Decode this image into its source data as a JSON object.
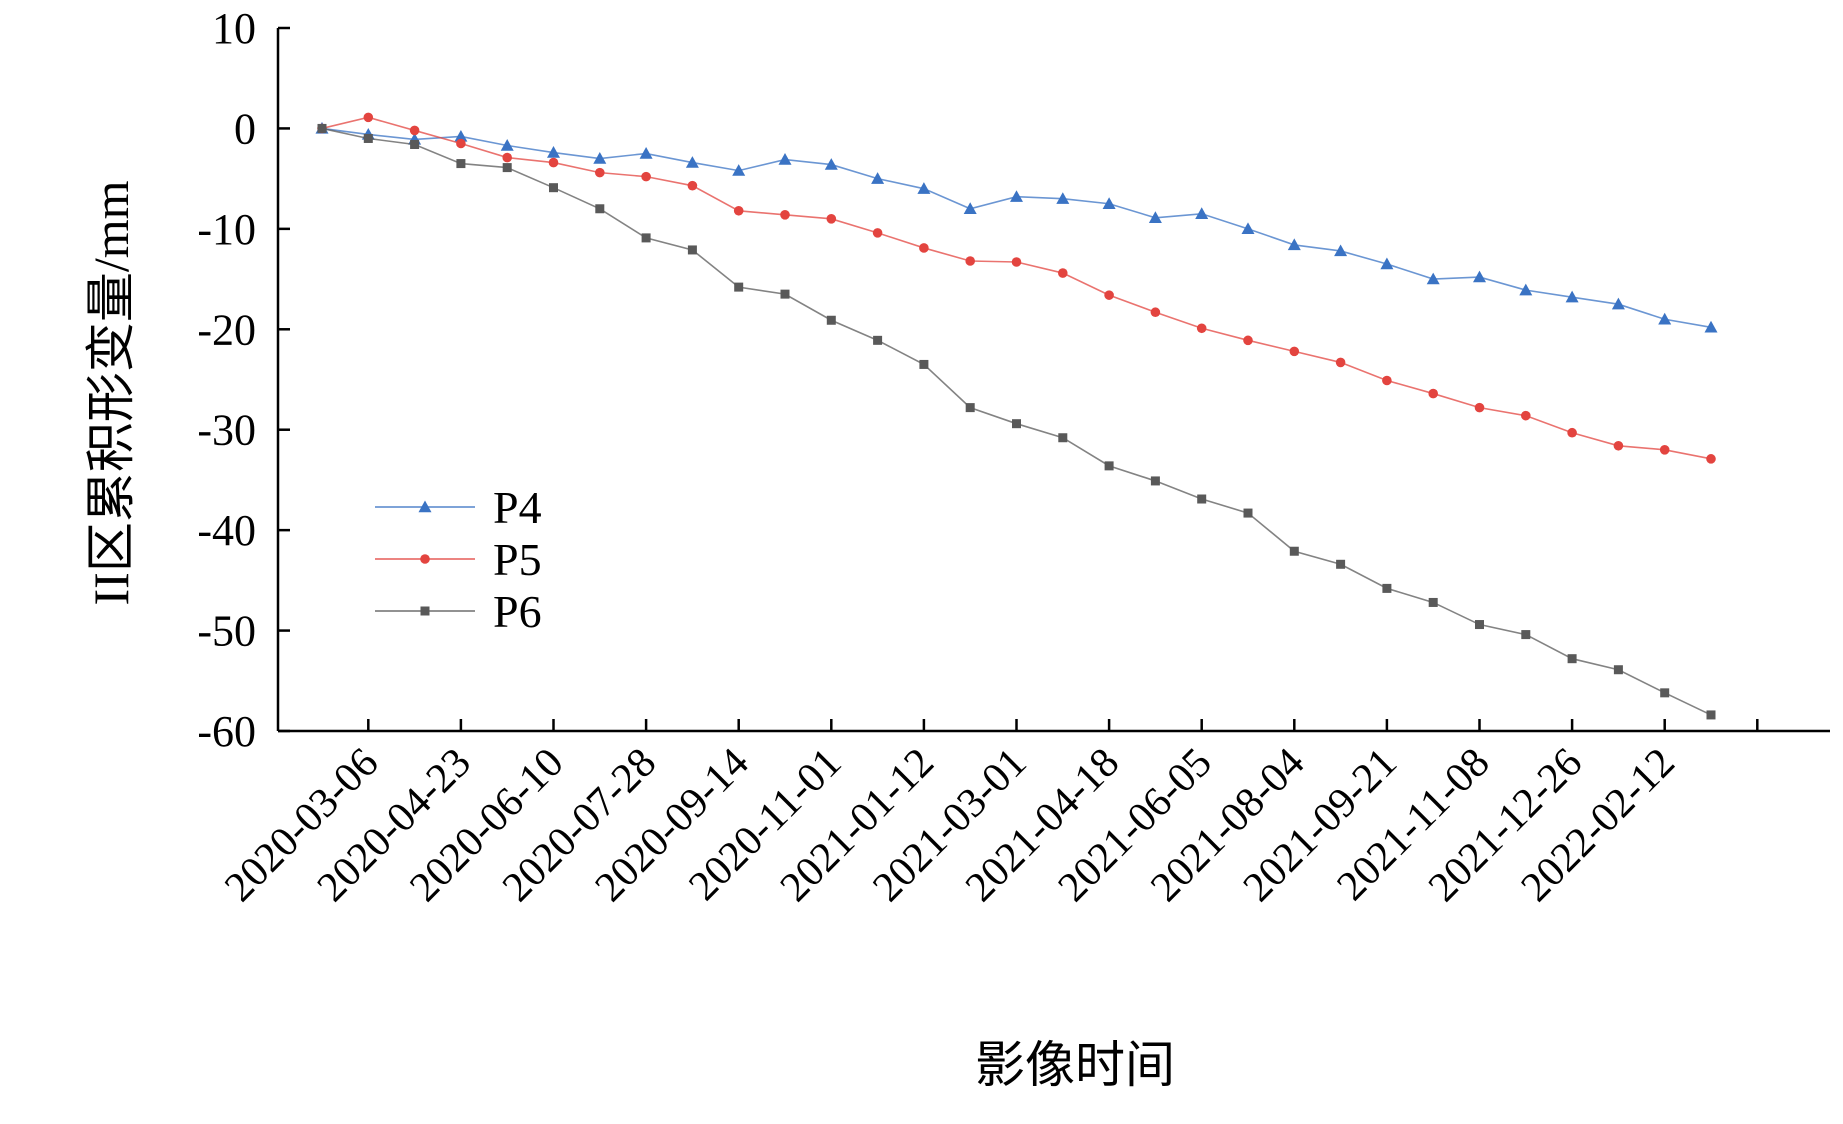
{
  "chart_data": {
    "type": "line",
    "title": "",
    "xlabel": "影像时间",
    "ylabel": "II区累积形变量/mm",
    "ylim": [
      -60,
      10
    ],
    "yticks": [
      10,
      0,
      -10,
      -20,
      -30,
      -40,
      -50,
      -60
    ],
    "x_tick_labels": [
      "2020-03-06",
      "2020-04-23",
      "2020-06-10",
      "2020-07-28",
      "2020-09-14",
      "2020-11-01",
      "2021-01-12",
      "2021-03-01",
      "2021-04-18",
      "2021-06-05",
      "2021-08-04",
      "2021-09-21",
      "2021-11-08",
      "2021-12-26",
      "2022-02-12"
    ],
    "x": [
      "2020-02-11",
      "2020-03-06",
      "2020-03-30",
      "2020-04-23",
      "2020-05-17",
      "2020-06-10",
      "2020-07-04",
      "2020-07-28",
      "2020-08-21",
      "2020-09-14",
      "2020-10-08",
      "2020-11-01",
      "2020-12-19",
      "2021-01-12",
      "2021-02-05",
      "2021-03-01",
      "2021-03-25",
      "2021-04-18",
      "2021-05-12",
      "2021-06-05",
      "2021-07-11",
      "2021-08-04",
      "2021-08-28",
      "2021-09-21",
      "2021-10-15",
      "2021-11-08",
      "2021-12-02",
      "2021-12-26",
      "2022-01-19",
      "2022-02-12",
      "2022-03-08"
    ],
    "grid": false,
    "legend_position": "left-middle",
    "series": [
      {
        "name": "P4",
        "color": "#3a73c4",
        "marker": "triangle",
        "values": [
          0,
          -0.6,
          -1.1,
          -0.8,
          -1.7,
          -2.4,
          -3.0,
          -2.5,
          -3.4,
          -4.2,
          -3.1,
          -3.6,
          -5.0,
          -6.0,
          -8.0,
          -6.8,
          -7.0,
          -7.5,
          -8.9,
          -8.5,
          -10.0,
          -11.6,
          -12.2,
          -13.5,
          -15.0,
          -14.8,
          -16.1,
          -16.8,
          -17.5,
          -19.0,
          -19.8
        ]
      },
      {
        "name": "P5",
        "color": "#e3443f",
        "marker": "circle",
        "values": [
          0,
          1.1,
          -0.2,
          -1.5,
          -2.9,
          -3.4,
          -4.4,
          -4.8,
          -5.7,
          -8.2,
          -8.6,
          -9.0,
          -10.4,
          -11.9,
          -13.2,
          -13.3,
          -14.4,
          -16.6,
          -18.3,
          -19.9,
          -21.1,
          -22.2,
          -23.3,
          -25.1,
          -26.4,
          -27.8,
          -28.6,
          -30.3,
          -31.6,
          -32.0,
          -32.9
        ]
      },
      {
        "name": "P6",
        "color": "#595959",
        "marker": "square",
        "values": [
          0,
          -1.0,
          -1.6,
          -3.5,
          -3.9,
          -5.9,
          -8.0,
          -10.9,
          -12.1,
          -15.8,
          -16.5,
          -19.1,
          -21.1,
          -23.5,
          -27.8,
          -29.4,
          -30.8,
          -33.6,
          -35.1,
          -36.9,
          -38.3,
          -42.1,
          -43.4,
          -45.8,
          -47.2,
          -49.4,
          -50.4,
          -52.8,
          -53.9,
          -56.2,
          -58.4
        ]
      }
    ]
  }
}
